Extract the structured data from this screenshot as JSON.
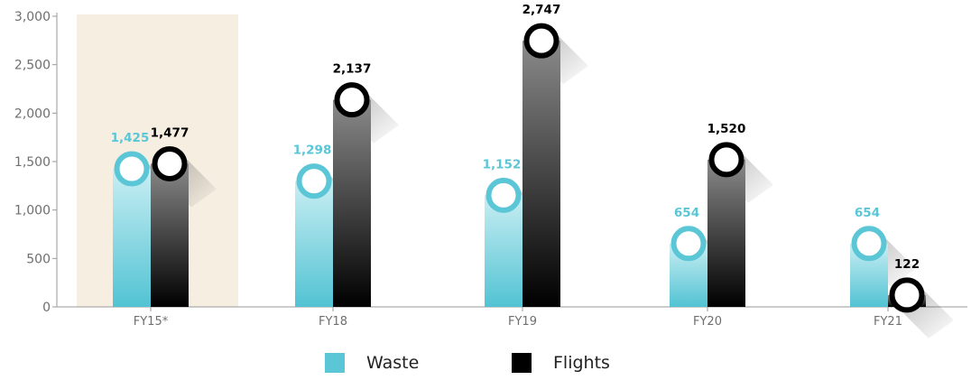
{
  "chart_data": {
    "type": "bar",
    "categories": [
      "FY15*",
      "FY18",
      "FY19",
      "FY20",
      "FY21"
    ],
    "series": [
      {
        "name": "Waste",
        "values": [
          1425,
          1298,
          1152,
          654,
          654
        ],
        "color": "#5bc6d6"
      },
      {
        "name": "Flights",
        "values": [
          1477,
          2137,
          2747,
          1520,
          122
        ],
        "color": "#000000"
      }
    ],
    "data_labels": {
      "Waste": [
        "1,425",
        "1,298",
        "1,152",
        "654",
        "654"
      ],
      "Flights": [
        "1,477",
        "2,137",
        "2,747",
        "1,520",
        "122"
      ]
    },
    "y_ticks": [
      "0",
      "500",
      "1,000",
      "1,500",
      "2,000",
      "2,500",
      "3,000"
    ],
    "y_tick_values": [
      0,
      500,
      1000,
      1500,
      2000,
      2500,
      3000
    ],
    "ylim": [
      0,
      3000
    ],
    "highlighted_category": "FY15*",
    "highlight_color": "#f5eee1",
    "legend_position": "bottom-center",
    "grid": false
  },
  "legend": {
    "waste_label": "Waste",
    "flights_label": "Flights"
  }
}
